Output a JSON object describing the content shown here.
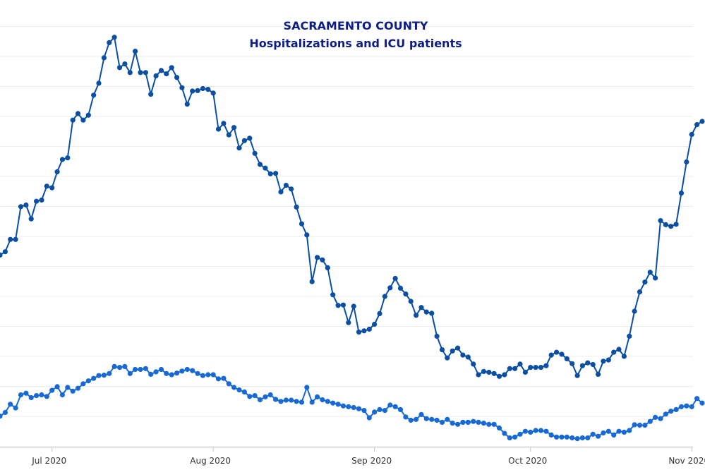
{
  "chart_data": {
    "type": "line",
    "title": "SACRAMENTO COUNTY",
    "subtitle": "Hospitalizations and ICU patients",
    "xlabel": "",
    "ylabel": "",
    "x_axis": {
      "type": "date",
      "start": "2020-06-21",
      "end": "2020-11-03",
      "tick_labels": [
        "Jul 2020",
        "Aug 2020",
        "Sep 2020",
        "Oct 2020",
        "Nov 2020"
      ]
    },
    "grid": true,
    "legend": "none",
    "series": [
      {
        "color": "#0a4fa3",
        "values": [
          [
            "2020-06-21",
            0.44
          ],
          [
            "2020-06-22",
            0.448
          ],
          [
            "2020-06-23",
            0.478
          ],
          [
            "2020-06-24",
            0.478
          ],
          [
            "2020-06-25",
            0.558
          ],
          [
            "2020-06-26",
            0.562
          ],
          [
            "2020-06-27",
            0.528
          ],
          [
            "2020-06-28",
            0.571
          ],
          [
            "2020-06-29",
            0.574
          ],
          [
            "2020-06-30",
            0.608
          ],
          [
            "2020-07-01",
            0.604
          ],
          [
            "2020-07-02",
            0.643
          ],
          [
            "2020-07-03",
            0.673
          ],
          [
            "2020-07-04",
            0.677
          ],
          [
            "2020-07-05",
            0.769
          ],
          [
            "2020-07-06",
            0.785
          ],
          [
            "2020-07-07",
            0.769
          ],
          [
            "2020-07-08",
            0.781
          ],
          [
            "2020-07-09",
            0.83
          ],
          [
            "2020-07-10",
            0.859
          ],
          [
            "2020-07-11",
            0.921
          ],
          [
            "2020-07-12",
            0.958
          ],
          [
            "2020-07-13",
            0.971
          ],
          [
            "2020-07-14",
            0.897
          ],
          [
            "2020-07-15",
            0.906
          ],
          [
            "2020-07-16",
            0.885
          ],
          [
            "2020-07-17",
            0.937
          ],
          [
            "2020-07-18",
            0.885
          ],
          [
            "2020-07-19",
            0.885
          ],
          [
            "2020-07-20",
            0.832
          ],
          [
            "2020-07-21",
            0.877
          ],
          [
            "2020-07-22",
            0.89
          ],
          [
            "2020-07-23",
            0.882
          ],
          [
            "2020-07-24",
            0.897
          ],
          [
            "2020-07-25",
            0.873
          ],
          [
            "2020-07-26",
            0.848
          ],
          [
            "2020-07-27",
            0.808
          ],
          [
            "2020-07-28",
            0.84
          ],
          [
            "2020-07-29",
            0.841
          ],
          [
            "2020-07-30",
            0.846
          ],
          [
            "2020-07-31",
            0.844
          ],
          [
            "2020-08-01",
            0.835
          ],
          [
            "2020-08-02",
            0.747
          ],
          [
            "2020-08-03",
            0.761
          ],
          [
            "2020-08-04",
            0.733
          ],
          [
            "2020-08-05",
            0.751
          ],
          [
            "2020-08-06",
            0.701
          ],
          [
            "2020-08-07",
            0.719
          ],
          [
            "2020-08-08",
            0.725
          ],
          [
            "2020-08-09",
            0.688
          ],
          [
            "2020-08-10",
            0.661
          ],
          [
            "2020-08-11",
            0.652
          ],
          [
            "2020-08-12",
            0.638
          ],
          [
            "2020-08-13",
            0.639
          ],
          [
            "2020-08-14",
            0.594
          ],
          [
            "2020-08-15",
            0.61
          ],
          [
            "2020-08-16",
            0.601
          ],
          [
            "2020-08-17",
            0.557
          ],
          [
            "2020-08-18",
            0.516
          ],
          [
            "2020-08-19",
            0.489
          ],
          [
            "2020-08-20",
            0.375
          ],
          [
            "2020-08-21",
            0.434
          ],
          [
            "2020-08-22",
            0.428
          ],
          [
            "2020-08-23",
            0.409
          ],
          [
            "2020-08-24",
            0.343
          ],
          [
            "2020-08-25",
            0.317
          ],
          [
            "2020-08-26",
            0.318
          ],
          [
            "2020-08-27",
            0.275
          ],
          [
            "2020-08-28",
            0.315
          ],
          [
            "2020-08-29",
            0.252
          ],
          [
            "2020-08-30",
            0.255
          ],
          [
            "2020-08-31",
            0.259
          ],
          [
            "2020-09-01",
            0.271
          ],
          [
            "2020-09-02",
            0.297
          ],
          [
            "2020-09-03",
            0.339
          ],
          [
            "2020-09-04",
            0.36
          ],
          [
            "2020-09-05",
            0.383
          ],
          [
            "2020-09-06",
            0.359
          ],
          [
            "2020-09-07",
            0.345
          ],
          [
            "2020-09-08",
            0.327
          ],
          [
            "2020-09-09",
            0.293
          ],
          [
            "2020-09-10",
            0.312
          ],
          [
            "2020-09-11",
            0.301
          ],
          [
            "2020-09-12",
            0.298
          ],
          [
            "2020-09-13",
            0.242
          ],
          [
            "2020-09-14",
            0.209
          ],
          [
            "2020-09-15",
            0.189
          ],
          [
            "2020-09-16",
            0.206
          ],
          [
            "2020-09-17",
            0.213
          ],
          [
            "2020-09-18",
            0.196
          ],
          [
            "2020-09-19",
            0.191
          ],
          [
            "2020-09-20",
            0.174
          ],
          [
            "2020-09-21",
            0.148
          ],
          [
            "2020-09-22",
            0.156
          ],
          [
            "2020-09-23",
            0.154
          ],
          [
            "2020-09-24",
            0.151
          ],
          [
            "2020-09-25",
            0.144
          ],
          [
            "2020-09-26",
            0.148
          ],
          [
            "2020-09-27",
            0.163
          ],
          [
            "2020-09-28",
            0.163
          ],
          [
            "2020-09-29",
            0.174
          ],
          [
            "2020-09-30",
            0.154
          ],
          [
            "2020-10-01",
            0.166
          ],
          [
            "2020-10-02",
            0.166
          ],
          [
            "2020-10-03",
            0.166
          ],
          [
            "2020-10-04",
            0.17
          ],
          [
            "2020-10-05",
            0.196
          ],
          [
            "2020-10-06",
            0.203
          ],
          [
            "2020-10-07",
            0.198
          ],
          [
            "2020-10-08",
            0.187
          ],
          [
            "2020-10-09",
            0.175
          ],
          [
            "2020-10-10",
            0.146
          ],
          [
            "2020-10-11",
            0.17
          ],
          [
            "2020-10-12",
            0.177
          ],
          [
            "2020-10-13",
            0.173
          ],
          [
            "2020-10-14",
            0.149
          ],
          [
            "2020-10-15",
            0.181
          ],
          [
            "2020-10-16",
            0.184
          ],
          [
            "2020-10-17",
            0.203
          ],
          [
            "2020-10-18",
            0.21
          ],
          [
            "2020-10-19",
            0.193
          ],
          [
            "2020-10-20",
            0.242
          ],
          [
            "2020-10-21",
            0.303
          ],
          [
            "2020-10-22",
            0.35
          ],
          [
            "2020-10-23",
            0.374
          ],
          [
            "2020-10-24",
            0.398
          ],
          [
            "2020-10-25",
            0.384
          ],
          [
            "2020-10-26",
            0.524
          ],
          [
            "2020-10-27",
            0.514
          ],
          [
            "2020-10-28",
            0.51
          ],
          [
            "2020-10-29",
            0.515
          ],
          [
            "2020-10-30",
            0.591
          ],
          [
            "2020-10-31",
            0.667
          ],
          [
            "2020-11-01",
            0.734
          ],
          [
            "2020-11-02",
            0.758
          ],
          [
            "2020-11-03",
            0.766
          ]
        ]
      },
      {
        "color": "#1769d6",
        "values": [
          [
            "2020-06-21",
            0.047
          ],
          [
            "2020-06-22",
            0.056
          ],
          [
            "2020-06-23",
            0.076
          ],
          [
            "2020-06-24",
            0.067
          ],
          [
            "2020-06-25",
            0.099
          ],
          [
            "2020-06-26",
            0.103
          ],
          [
            "2020-06-27",
            0.092
          ],
          [
            "2020-06-28",
            0.097
          ],
          [
            "2020-06-29",
            0.099
          ],
          [
            "2020-06-30",
            0.095
          ],
          [
            "2020-07-01",
            0.11
          ],
          [
            "2020-07-02",
            0.119
          ],
          [
            "2020-07-03",
            0.099
          ],
          [
            "2020-07-04",
            0.117
          ],
          [
            "2020-07-05",
            0.108
          ],
          [
            "2020-07-06",
            0.115
          ],
          [
            "2020-07-07",
            0.126
          ],
          [
            "2020-07-08",
            0.133
          ],
          [
            "2020-07-09",
            0.139
          ],
          [
            "2020-07-10",
            0.146
          ],
          [
            "2020-07-11",
            0.147
          ],
          [
            "2020-07-12",
            0.151
          ],
          [
            "2020-07-13",
            0.168
          ],
          [
            "2020-07-14",
            0.166
          ],
          [
            "2020-07-15",
            0.168
          ],
          [
            "2020-07-16",
            0.151
          ],
          [
            "2020-07-17",
            0.161
          ],
          [
            "2020-07-18",
            0.161
          ],
          [
            "2020-07-19",
            0.163
          ],
          [
            "2020-07-20",
            0.149
          ],
          [
            "2020-07-21",
            0.155
          ],
          [
            "2020-07-22",
            0.161
          ],
          [
            "2020-07-23",
            0.151
          ],
          [
            "2020-07-24",
            0.148
          ],
          [
            "2020-07-25",
            0.152
          ],
          [
            "2020-07-26",
            0.157
          ],
          [
            "2020-07-27",
            0.161
          ],
          [
            "2020-07-28",
            0.158
          ],
          [
            "2020-07-29",
            0.151
          ],
          [
            "2020-07-30",
            0.146
          ],
          [
            "2020-07-31",
            0.148
          ],
          [
            "2020-08-01",
            0.148
          ],
          [
            "2020-08-02",
            0.138
          ],
          [
            "2020-08-03",
            0.139
          ],
          [
            "2020-08-04",
            0.126
          ],
          [
            "2020-08-05",
            0.117
          ],
          [
            "2020-08-06",
            0.111
          ],
          [
            "2020-08-07",
            0.106
          ],
          [
            "2020-08-08",
            0.095
          ],
          [
            "2020-08-09",
            0.097
          ],
          [
            "2020-08-10",
            0.087
          ],
          [
            "2020-08-11",
            0.094
          ],
          [
            "2020-08-12",
            0.099
          ],
          [
            "2020-08-13",
            0.088
          ],
          [
            "2020-08-14",
            0.083
          ],
          [
            "2020-08-15",
            0.086
          ],
          [
            "2020-08-16",
            0.086
          ],
          [
            "2020-08-17",
            0.083
          ],
          [
            "2020-08-18",
            0.081
          ],
          [
            "2020-08-19",
            0.117
          ],
          [
            "2020-08-20",
            0.081
          ],
          [
            "2020-08-21",
            0.094
          ],
          [
            "2020-08-22",
            0.087
          ],
          [
            "2020-08-23",
            0.083
          ],
          [
            "2020-08-24",
            0.079
          ],
          [
            "2020-08-25",
            0.076
          ],
          [
            "2020-08-26",
            0.072
          ],
          [
            "2020-08-27",
            0.07
          ],
          [
            "2020-08-28",
            0.068
          ],
          [
            "2020-08-29",
            0.065
          ],
          [
            "2020-08-30",
            0.061
          ],
          [
            "2020-08-31",
            0.043
          ],
          [
            "2020-09-01",
            0.057
          ],
          [
            "2020-09-02",
            0.063
          ],
          [
            "2020-09-03",
            0.061
          ],
          [
            "2020-09-04",
            0.074
          ],
          [
            "2020-09-05",
            0.07
          ],
          [
            "2020-09-06",
            0.063
          ],
          [
            "2020-09-07",
            0.045
          ],
          [
            "2020-09-08",
            0.037
          ],
          [
            "2020-09-09",
            0.039
          ],
          [
            "2020-09-10",
            0.051
          ],
          [
            "2020-09-11",
            0.041
          ],
          [
            "2020-09-12",
            0.039
          ],
          [
            "2020-09-13",
            0.037
          ],
          [
            "2020-09-14",
            0.032
          ],
          [
            "2020-09-15",
            0.039
          ],
          [
            "2020-09-16",
            0.03
          ],
          [
            "2020-09-17",
            0.027
          ],
          [
            "2020-09-18",
            0.032
          ],
          [
            "2020-09-19",
            0.032
          ],
          [
            "2020-09-20",
            0.034
          ],
          [
            "2020-09-21",
            0.032
          ],
          [
            "2020-09-22",
            0.03
          ],
          [
            "2020-09-23",
            0.027
          ],
          [
            "2020-09-24",
            0.027
          ],
          [
            "2020-09-25",
            0.018
          ],
          [
            "2020-09-26",
            0.005
          ],
          [
            "2020-09-27",
            -0.006
          ],
          [
            "2020-09-28",
            -0.004
          ],
          [
            "2020-09-29",
            0.003
          ],
          [
            "2020-09-30",
            0.01
          ],
          [
            "2020-10-01",
            0.008
          ],
          [
            "2020-10-02",
            0.012
          ],
          [
            "2020-10-03",
            0.012
          ],
          [
            "2020-10-04",
            0.01
          ],
          [
            "2020-10-05",
            0.001
          ],
          [
            "2020-10-06",
            -0.004
          ],
          [
            "2020-10-07",
            -0.004
          ],
          [
            "2020-10-08",
            -0.004
          ],
          [
            "2020-10-09",
            -0.006
          ],
          [
            "2020-10-10",
            -0.008
          ],
          [
            "2020-10-11",
            -0.006
          ],
          [
            "2020-10-12",
            -0.006
          ],
          [
            "2020-10-13",
            0.003
          ],
          [
            "2020-10-14",
            -0.002
          ],
          [
            "2020-10-15",
            0.006
          ],
          [
            "2020-10-16",
            0.01
          ],
          [
            "2020-10-17",
            0.001
          ],
          [
            "2020-10-18",
            0.01
          ],
          [
            "2020-10-19",
            0.008
          ],
          [
            "2020-10-20",
            0.012
          ],
          [
            "2020-10-21",
            0.026
          ],
          [
            "2020-10-22",
            0.025
          ],
          [
            "2020-10-23",
            0.025
          ],
          [
            "2020-10-24",
            0.034
          ],
          [
            "2020-10-25",
            0.044
          ],
          [
            "2020-10-26",
            0.041
          ],
          [
            "2020-10-27",
            0.052
          ],
          [
            "2020-10-28",
            0.059
          ],
          [
            "2020-10-29",
            0.063
          ],
          [
            "2020-10-30",
            0.07
          ],
          [
            "2020-10-31",
            0.072
          ],
          [
            "2020-11-01",
            0.07
          ],
          [
            "2020-11-02",
            0.09
          ],
          [
            "2020-11-03",
            0.079
          ]
        ]
      }
    ]
  }
}
